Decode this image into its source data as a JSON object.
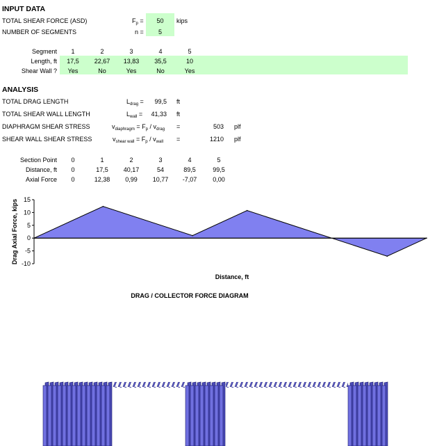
{
  "input": {
    "heading": "INPUT DATA",
    "shear_label": "TOTAL SHEAR FORCE (ASD)",
    "shear_sym": "F",
    "shear_sub": "p",
    "shear_eq": "=",
    "shear_value": "50",
    "shear_unit": "kips",
    "segments_label": "NUMBER OF SEGMENTS",
    "segments_sym": "n =",
    "segments_value": "5"
  },
  "segments": {
    "row_labels": [
      "Segment",
      "Length, ft",
      "Shear Wall ?"
    ],
    "numbers": [
      "1",
      "2",
      "3",
      "4",
      "5"
    ],
    "lengths": [
      "17,5",
      "22,67",
      "13,83",
      "35,5",
      "10"
    ],
    "shear_wall": [
      "Yes",
      "No",
      "Yes",
      "No",
      "Yes"
    ]
  },
  "analysis": {
    "heading": "ANALYSIS",
    "drag_label": "TOTAL DRAG LENGTH",
    "drag_sym": "L",
    "drag_sub": "drag",
    "drag_eq": "=",
    "drag_value": "99,5",
    "drag_unit": "ft",
    "wall_label": "TOTAL SHEAR WALL LENGTH",
    "wall_sym": "L",
    "wall_sub": "wall",
    "wall_eq": "=",
    "wall_value": "41,33",
    "wall_unit": "ft",
    "diaph_label": "DIAPHRAGM SHEAR STRESS",
    "diaph_v": "v",
    "diaph_vsub": "diaphragm",
    "diaph_eq": "= F",
    "diaph_fsub": "p",
    "diaph_div": "/ v",
    "diaph_dsub": "drag",
    "diaph_eq2": "=",
    "diaph_value": "503",
    "diaph_unit": "plf",
    "sw_label": "SHEAR WALL SHEAR STRESS",
    "sw_v": "v",
    "sw_vsub": "shear wall",
    "sw_eq": "= F",
    "sw_fsub": "p",
    "sw_div": "/ v",
    "sw_dsub": "wall",
    "sw_eq2": "=",
    "sw_value": "1210",
    "sw_unit": "plf"
  },
  "section_table": {
    "row_labels": [
      "Section Point",
      "Distance, ft",
      "Axial Force"
    ],
    "points": [
      "0",
      "1",
      "2",
      "3",
      "4",
      "5"
    ],
    "distances": [
      "0",
      "17,5",
      "40,17",
      "54",
      "89,5",
      "99,5"
    ],
    "forces": [
      "0",
      "12,38",
      "0,99",
      "10,77",
      "-7,07",
      "0,00"
    ]
  },
  "chart_data": {
    "type": "area",
    "title": "DRAG / COLLECTOR FORCE DIAGRAM",
    "xlabel": "Distance, ft",
    "ylabel": "Drag Axial Force, kips",
    "x": [
      0,
      17.5,
      40.17,
      54,
      89.5,
      99.5
    ],
    "series": [
      {
        "values": [
          0,
          12.38,
          0.99,
          10.77,
          -7.07,
          0.0
        ]
      }
    ],
    "xlim": [
      0,
      99.5
    ],
    "ylim": [
      -10,
      15
    ],
    "yticks": [
      "15",
      "10",
      "5",
      "0",
      "-5",
      "-10"
    ],
    "fill_color": "#8080f0",
    "grid": false
  },
  "colors": {
    "input_fill": "#ccffcc",
    "wall_fill": "#7070e0",
    "wall_edge": "#1a1a6a"
  }
}
